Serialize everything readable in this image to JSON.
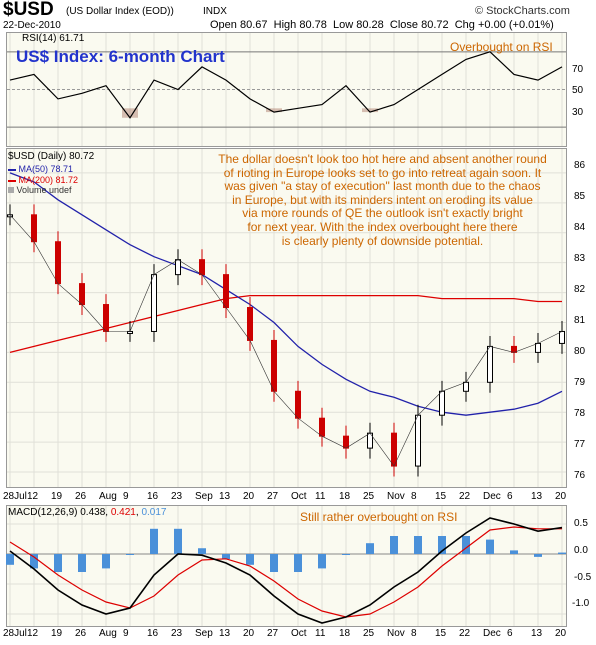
{
  "header": {
    "symbol": "$USD",
    "name": "(US Dollar Index (EOD))",
    "exchange": "INDX",
    "date": "22-Dec-2010",
    "open_label": "Open",
    "open": "80.67",
    "high_label": "High",
    "high": "80.78",
    "low_label": "Low",
    "low": "80.28",
    "close_label": "Close",
    "close": "80.72",
    "chg_label": "Chg",
    "chg": "+0.00 (+0.01%)",
    "copyright": "© StockCharts.com"
  },
  "rsi": {
    "label": "RSI(14) 61.71",
    "chart_title": "US$ Index: 6-month Chart",
    "note": "Overbought on RSI",
    "ticks": [
      "70",
      "50",
      "30"
    ]
  },
  "main": {
    "legend": {
      "title": "$USD (Daily) 80.72",
      "ma50": "MA(50) 78.71",
      "ma200": "MA(200) 81.72",
      "volume": "Volume undef"
    },
    "annotation": [
      "The dollar doesn't look too hot here and absent another round",
      "of rioting in Europe looks set to go into retreat again soon. It",
      "was given \"a stay of execution\" last month due to the chaos",
      "in Europe, but with its minders intent on eroding its value",
      "via more rounds of QE the outlook isn't exactly bright",
      "for next year. With the index overbought here there",
      "is clearly plenty of downside potential."
    ],
    "y_ticks": [
      "86",
      "85",
      "84",
      "83",
      "82",
      "81",
      "80",
      "79",
      "78",
      "77",
      "76"
    ]
  },
  "x_labels": [
    "28Jul",
    "12",
    "19",
    "26",
    "Aug",
    "9",
    "16",
    "23",
    "Sep",
    "13",
    "20",
    "27",
    "Oct",
    "11",
    "18",
    "25",
    "Nov",
    "8",
    "15",
    "22",
    "Dec",
    "6",
    "13",
    "20"
  ],
  "macd": {
    "label": "MACD(12,26,9)",
    "v1": "0.438",
    "v2": "0.421",
    "v3": "0.017",
    "note": "Still rather overbought on RSI",
    "ticks": [
      "0.5",
      "0.0",
      "-0.5",
      "-1.0"
    ]
  },
  "colors": {
    "price_up": "#000000",
    "price_down": "#cc0000",
    "ma50": "#2222aa",
    "ma200": "#dd0000",
    "annotation": "#cc6600",
    "title": "#2233cc",
    "macd_hist": "#4a90d9"
  },
  "chart_data": {
    "type": "line",
    "title": "US$ Index: 6-month Chart",
    "x": [
      "28Jul",
      "12",
      "19",
      "26",
      "Aug",
      "9",
      "16",
      "23",
      "Sep",
      "13",
      "20",
      "27",
      "Oct",
      "11",
      "18",
      "25",
      "Nov",
      "8",
      "15",
      "22",
      "Dec",
      "6",
      "13",
      "20"
    ],
    "price_ylim": [
      75.5,
      86.8
    ],
    "series": [
      {
        "name": "$USD (Daily) 80.72",
        "values": [
          84.6,
          83.7,
          82.3,
          81.6,
          80.7,
          80.7,
          82.6,
          83.1,
          82.6,
          81.5,
          80.4,
          78.7,
          77.8,
          77.2,
          76.8,
          77.3,
          76.2,
          77.9,
          78.7,
          79.0,
          80.2,
          80.0,
          80.3,
          80.7
        ]
      },
      {
        "name": "MA(50) 78.71",
        "values": [
          86.0,
          85.7,
          85.1,
          84.6,
          84.1,
          83.6,
          83.2,
          82.9,
          82.6,
          82.1,
          81.6,
          81.0,
          80.2,
          79.6,
          79.1,
          78.7,
          78.5,
          78.2,
          78.0,
          77.9,
          78.0,
          78.1,
          78.3,
          78.7
        ]
      },
      {
        "name": "MA(200) 81.72",
        "values": [
          80.0,
          80.2,
          80.4,
          80.6,
          80.8,
          81.0,
          81.2,
          81.4,
          81.6,
          81.8,
          81.9,
          81.9,
          81.9,
          81.9,
          81.9,
          81.9,
          81.9,
          81.9,
          81.8,
          81.8,
          81.8,
          81.8,
          81.7,
          81.7
        ]
      }
    ],
    "rsi": {
      "ylim": [
        20,
        80
      ],
      "values": [
        55,
        58,
        45,
        48,
        52,
        35,
        55,
        50,
        62,
        55,
        45,
        38,
        40,
        42,
        52,
        38,
        42,
        50,
        58,
        66,
        70,
        58,
        55,
        62
      ]
    },
    "macd": {
      "ylim": [
        -1.2,
        0.8
      ],
      "macd": [
        0.05,
        -0.25,
        -0.6,
        -0.85,
        -1.0,
        -0.9,
        -0.35,
        0.0,
        -0.02,
        -0.15,
        -0.35,
        -0.7,
        -1.0,
        -1.15,
        -1.05,
        -0.85,
        -0.55,
        -0.3,
        0.05,
        0.35,
        0.6,
        0.5,
        0.38,
        0.44
      ],
      "signal": [
        0.2,
        -0.05,
        -0.35,
        -0.6,
        -0.8,
        -0.9,
        -0.7,
        -0.35,
        -0.1,
        -0.08,
        -0.2,
        -0.45,
        -0.75,
        -0.95,
        -1.05,
        -1.0,
        -0.8,
        -0.55,
        -0.2,
        0.1,
        0.4,
        0.45,
        0.42,
        0.42
      ]
    }
  }
}
